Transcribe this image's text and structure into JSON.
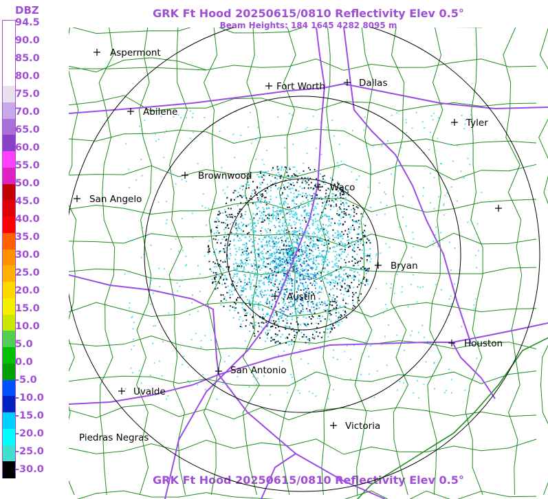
{
  "title": "GRK Ft Hood 20250615/0810 Reflectivity Elev 0.5°",
  "subtitle": "Beam Heights: 184 1645 4282 8095 m",
  "legend": {
    "unit": "DBZ",
    "labels": [
      "94.5",
      "90.0",
      "85.0",
      "80.0",
      "75.0",
      "70.0",
      "65.0",
      "60.0",
      "55.0",
      "50.0",
      "45.0",
      "40.0",
      "35.0",
      "30.0",
      "25.0",
      "20.0",
      "15.0",
      "10.0",
      "5.0",
      "0.0",
      "-5.0",
      "-10.0",
      "-15.0",
      "-20.0",
      "-25.0",
      "-30.0"
    ],
    "colors": [
      "#ffffff",
      "#ffffff",
      "#ffffff",
      "#ffffff",
      "#e8e0f0",
      "#c8a8e8",
      "#a870d8",
      "#8840c8",
      "#ff40ff",
      "#e020c0",
      "#c00000",
      "#e00000",
      "#ff0000",
      "#ff6000",
      "#ff9000",
      "#ffb000",
      "#ffd800",
      "#f0f000",
      "#c8e800",
      "#50d050",
      "#00c000",
      "#00a000",
      "#0050ff",
      "#0020c0",
      "#00d0ff",
      "#00ffff",
      "#40e0d0",
      "#000000"
    ]
  },
  "cities": [
    {
      "name": "Aspermont"
    },
    {
      "name": "Abilene"
    },
    {
      "name": "Fort Worth"
    },
    {
      "name": "Dallas"
    },
    {
      "name": "Tyler"
    },
    {
      "name": "Brownwood"
    },
    {
      "name": "Waco"
    },
    {
      "name": "San Angelo"
    },
    {
      "name": "Bryan"
    },
    {
      "name": "Austin"
    },
    {
      "name": "Houston"
    },
    {
      "name": "San Antonio"
    },
    {
      "name": "Uvalde"
    },
    {
      "name": "Victoria"
    },
    {
      "name": "Piedras Negras"
    },
    {
      "name": ""
    }
  ],
  "colors": {
    "accent": "#9f4fd6",
    "county_lines": "#1a8a1a",
    "highways": "#9a4ae6",
    "range_rings": "#000000",
    "echo_light": "#40d8e8",
    "echo_dark": "#102030"
  }
}
